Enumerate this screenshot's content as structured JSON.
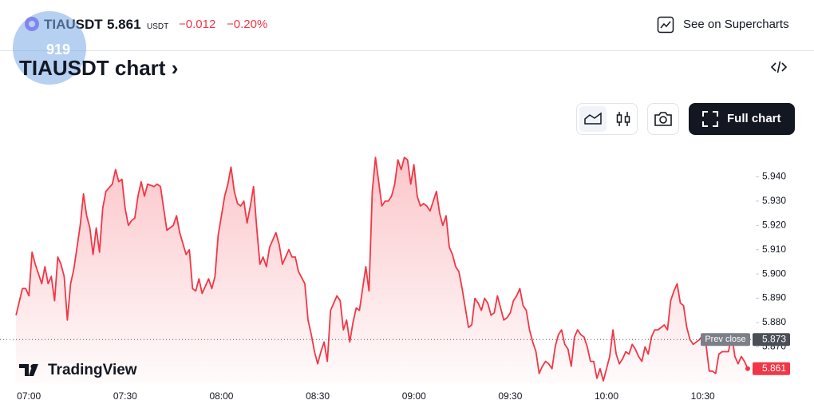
{
  "header": {
    "symbol": "TIAUSDT",
    "price": "5.861",
    "currency": "USDT",
    "change": "−0.012",
    "change_percent": "−0.20%",
    "supercharts_link": "See on Supercharts",
    "badge": "919"
  },
  "title": "TIAUSDT chart",
  "toolbar": {
    "full_chart": "Full chart"
  },
  "chart_data": {
    "type": "area",
    "color": "#f23645",
    "x": [
      "06:56",
      "06:58",
      "06:59",
      "07:00",
      "07:01",
      "07:02",
      "07:04",
      "07:05",
      "07:06",
      "07:07",
      "07:08",
      "07:09",
      "07:10",
      "07:11",
      "07:12",
      "07:13",
      "07:14",
      "07:16",
      "07:17",
      "07:18",
      "07:19",
      "07:20",
      "07:21",
      "07:22",
      "07:23",
      "07:24",
      "07:26",
      "07:27",
      "07:28",
      "07:29",
      "07:30",
      "07:31",
      "07:32",
      "07:33",
      "07:34",
      "07:35",
      "07:36",
      "07:37",
      "07:39",
      "07:40",
      "07:41",
      "07:42",
      "07:43",
      "07:44",
      "07:45",
      "07:46",
      "07:47",
      "07:49",
      "07:50",
      "07:51",
      "07:52",
      "07:53",
      "07:54",
      "07:56",
      "07:57",
      "07:58",
      "07:59",
      "08:00",
      "08:01",
      "08:02",
      "08:03",
      "08:04",
      "08:05",
      "08:06",
      "08:07",
      "08:08",
      "08:09",
      "08:10",
      "08:11",
      "08:12",
      "08:13",
      "08:14",
      "08:15",
      "08:17",
      "08:18",
      "08:19",
      "08:20",
      "08:21",
      "08:22",
      "08:23",
      "08:24",
      "08:26",
      "08:27",
      "08:28",
      "08:29",
      "08:30",
      "08:31",
      "08:32",
      "08:33",
      "08:34",
      "08:36",
      "08:37",
      "08:38",
      "08:39",
      "08:40",
      "08:41",
      "08:42",
      "08:43",
      "08:44",
      "08:45",
      "08:46",
      "08:47",
      "08:48",
      "08:49",
      "08:50",
      "08:51",
      "08:52",
      "08:53",
      "08:54",
      "08:55",
      "08:56",
      "08:57",
      "08:58",
      "08:59",
      "09:00",
      "09:01",
      "09:02",
      "09:03",
      "09:04",
      "09:05",
      "09:06",
      "09:07",
      "09:08",
      "09:09",
      "09:10",
      "09:11",
      "09:12",
      "09:13",
      "09:14",
      "09:15",
      "09:16",
      "09:17",
      "09:18",
      "09:19",
      "09:20",
      "09:21",
      "09:22",
      "09:23",
      "09:24",
      "09:25",
      "09:26",
      "09:27",
      "09:28",
      "09:29",
      "09:30",
      "09:31",
      "09:32",
      "09:33",
      "09:34",
      "09:35",
      "09:36",
      "09:37",
      "09:38",
      "09:39",
      "09:40",
      "09:41",
      "09:42",
      "09:43",
      "09:44",
      "09:45",
      "09:46",
      "09:47",
      "09:48",
      "09:49",
      "09:50",
      "09:51",
      "09:52",
      "09:53",
      "09:54",
      "09:55",
      "09:56",
      "09:57",
      "09:58",
      "09:59",
      "10:00",
      "10:01",
      "10:02",
      "10:03",
      "10:04",
      "10:05",
      "10:06",
      "10:07",
      "10:08",
      "10:09",
      "10:10",
      "10:11",
      "10:12",
      "10:13",
      "10:14",
      "10:15",
      "10:16",
      "10:17",
      "10:18",
      "10:19",
      "10:20",
      "10:21",
      "10:22",
      "10:23",
      "10:24",
      "10:25",
      "10:26",
      "10:27",
      "10:28",
      "10:29",
      "10:30",
      "10:31",
      "10:32",
      "10:33",
      "10:34",
      "10:35",
      "10:36",
      "10:37",
      "10:38",
      "10:39",
      "10:40",
      "10:41",
      "10:42",
      "10:43",
      "10:44"
    ],
    "values": [
      5.883,
      5.894,
      5.894,
      5.891,
      5.909,
      5.904,
      5.896,
      5.903,
      5.896,
      5.899,
      5.889,
      5.907,
      5.904,
      5.899,
      5.881,
      5.896,
      5.902,
      5.92,
      5.933,
      5.924,
      5.919,
      5.908,
      5.919,
      5.909,
      5.927,
      5.934,
      5.937,
      5.943,
      5.938,
      5.939,
      5.927,
      5.92,
      5.922,
      5.923,
      5.932,
      5.938,
      5.932,
      5.937,
      5.936,
      5.937,
      5.936,
      5.927,
      5.918,
      5.919,
      5.92,
      5.924,
      5.917,
      5.908,
      5.91,
      5.894,
      5.893,
      5.898,
      5.892,
      5.898,
      5.894,
      5.899,
      5.916,
      5.924,
      5.932,
      5.937,
      5.944,
      5.934,
      5.929,
      5.928,
      5.93,
      5.921,
      5.928,
      5.936,
      5.919,
      5.904,
      5.907,
      5.903,
      5.911,
      5.917,
      5.912,
      5.904,
      5.907,
      5.91,
      5.907,
      5.907,
      5.901,
      5.896,
      5.881,
      5.875,
      5.868,
      5.863,
      5.868,
      5.872,
      5.864,
      5.885,
      5.891,
      5.889,
      5.877,
      5.881,
      5.872,
      5.88,
      5.886,
      5.885,
      5.894,
      5.903,
      5.893,
      5.934,
      5.948,
      5.938,
      5.928,
      5.93,
      5.93,
      5.932,
      5.937,
      5.947,
      5.943,
      5.948,
      5.947,
      5.937,
      5.945,
      5.932,
      5.928,
      5.929,
      5.928,
      5.926,
      5.93,
      5.934,
      5.925,
      5.92,
      5.924,
      5.911,
      5.908,
      5.903,
      5.901,
      5.894,
      5.886,
      5.878,
      5.879,
      5.89,
      5.888,
      5.885,
      5.89,
      5.888,
      5.883,
      5.884,
      5.891,
      5.886,
      5.881,
      5.882,
      5.884,
      5.889,
      5.891,
      5.894,
      5.887,
      5.885,
      5.877,
      5.872,
      5.868,
      5.859,
      5.862,
      5.864,
      5.863,
      5.861,
      5.87,
      5.875,
      5.877,
      5.871,
      5.869,
      5.862,
      5.874,
      5.877,
      5.875,
      5.874,
      5.87,
      5.864,
      5.864,
      5.857,
      5.861,
      5.856,
      5.861,
      5.866,
      5.877,
      5.867,
      5.863,
      5.865,
      5.868,
      5.867,
      5.871,
      5.869,
      5.866,
      5.864,
      5.87,
      5.867,
      5.874,
      5.877,
      5.877,
      5.878,
      5.879,
      5.877,
      5.889,
      5.893,
      5.896,
      5.888,
      5.887,
      5.878,
      5.873,
      5.871,
      5.872,
      5.873,
      5.875,
      5.871,
      5.86,
      5.86,
      5.859,
      5.867,
      5.868,
      5.868,
      5.868,
      5.875,
      5.866,
      5.863,
      5.866,
      5.864,
      5.861
    ],
    "xlim": [
      "06:51",
      "10:46"
    ],
    "xticks": [
      "07:00",
      "07:30",
      "08:00",
      "08:30",
      "09:00",
      "09:30",
      "10:00",
      "10:30"
    ],
    "ylim": [
      5.855,
      5.952
    ],
    "yticks": [
      {
        "value": 5.87,
        "label": "5.870"
      },
      {
        "value": 5.88,
        "label": "5.880"
      },
      {
        "value": 5.89,
        "label": "5.890"
      },
      {
        "value": 5.9,
        "label": "5.900"
      },
      {
        "value": 5.91,
        "label": "5.910"
      },
      {
        "value": 5.92,
        "label": "5.920"
      },
      {
        "value": 5.93,
        "label": "5.930"
      },
      {
        "value": 5.94,
        "label": "5.940"
      }
    ],
    "prev_close_label": "Prev close",
    "prev_close": 5.873,
    "last_price": 5.861,
    "logo": "TradingView"
  }
}
